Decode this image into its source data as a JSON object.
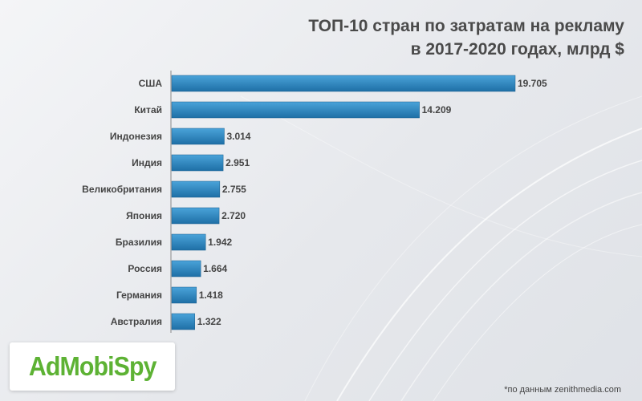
{
  "title_lines": [
    "ТОП-10 стран по затратам на рекламу",
    "в 2017-2020 годах, млрд $"
  ],
  "logo": "AdMobiSpy",
  "source": "*по данным zenithmedia.com",
  "colors": {
    "bar_top": "#4aa3d9",
    "bar_bottom": "#1e6fa6",
    "text": "#444444",
    "logo": "#5db234"
  },
  "chart_data": {
    "type": "bar",
    "orientation": "horizontal",
    "title": "ТОП-10 стран по затратам на рекламу в 2017-2020 годах, млрд $",
    "categories": [
      "США",
      "Китай",
      "Индонезия",
      "Индия",
      "Великобритания",
      "Япония",
      "Бразилия",
      "Россия",
      "Германия",
      "Австралия"
    ],
    "values": [
      19.705,
      14.209,
      3.014,
      2.951,
      2.755,
      2.72,
      1.942,
      1.664,
      1.418,
      1.322
    ],
    "labels": [
      "19.705",
      "14.209",
      "3.014",
      "2.951",
      "2.755",
      "2.720",
      "1.942",
      "1.664",
      "1.418",
      "1.322"
    ],
    "grid": false,
    "legend": "none"
  }
}
